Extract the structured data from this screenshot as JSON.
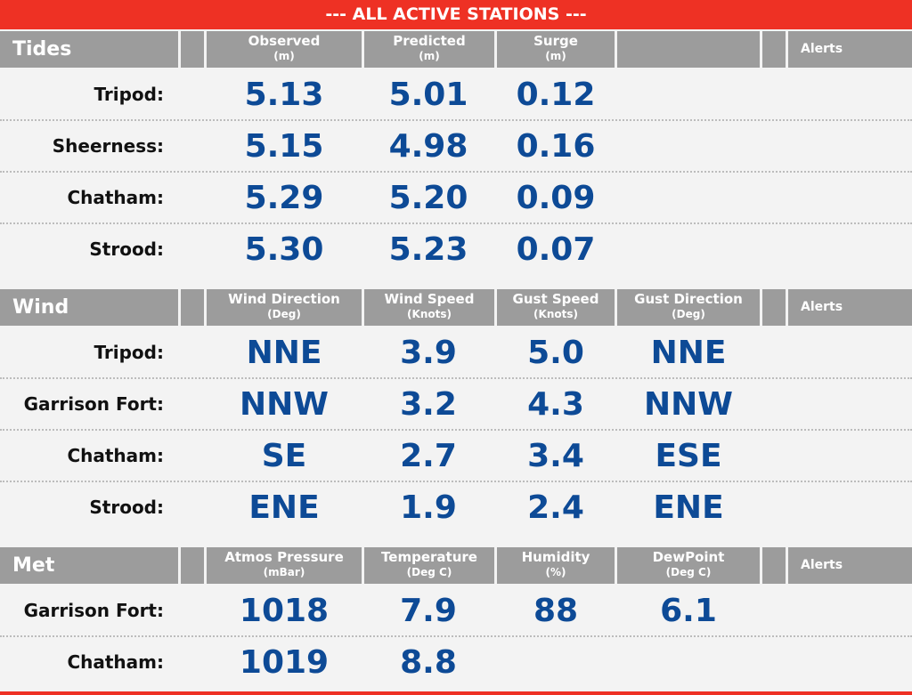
{
  "banner": "--- ALL ACTIVE STATIONS ---",
  "tides": {
    "title": "Tides",
    "columns": [
      {
        "label": "Observed",
        "unit": "(m)"
      },
      {
        "label": "Predicted",
        "unit": "(m)"
      },
      {
        "label": "Surge",
        "unit": "(m)"
      },
      {
        "label": "",
        "unit": ""
      }
    ],
    "alerts": "Alerts",
    "rows": [
      {
        "station": "Tripod:",
        "values": [
          "5.13",
          "5.01",
          "0.12",
          ""
        ]
      },
      {
        "station": "Sheerness:",
        "values": [
          "5.15",
          "4.98",
          "0.16",
          ""
        ]
      },
      {
        "station": "Chatham:",
        "values": [
          "5.29",
          "5.20",
          "0.09",
          ""
        ]
      },
      {
        "station": "Strood:",
        "values": [
          "5.30",
          "5.23",
          "0.07",
          ""
        ]
      }
    ]
  },
  "wind": {
    "title": "Wind",
    "columns": [
      {
        "label": "Wind Direction",
        "unit": "(Deg)"
      },
      {
        "label": "Wind Speed",
        "unit": "(Knots)"
      },
      {
        "label": "Gust Speed",
        "unit": "(Knots)"
      },
      {
        "label": "Gust Direction",
        "unit": "(Deg)"
      }
    ],
    "alerts": "Alerts",
    "rows": [
      {
        "station": "Tripod:",
        "values": [
          "NNE",
          "3.9",
          "5.0",
          "NNE"
        ]
      },
      {
        "station": "Garrison Fort:",
        "values": [
          "NNW",
          "3.2",
          "4.3",
          "NNW"
        ]
      },
      {
        "station": "Chatham:",
        "values": [
          "SE",
          "2.7",
          "3.4",
          "ESE"
        ]
      },
      {
        "station": "Strood:",
        "values": [
          "ENE",
          "1.9",
          "2.4",
          "ENE"
        ]
      }
    ]
  },
  "met": {
    "title": "Met",
    "columns": [
      {
        "label": "Atmos Pressure",
        "unit": "(mBar)"
      },
      {
        "label": "Temperature",
        "unit": "(Deg C)"
      },
      {
        "label": "Humidity",
        "unit": "(%)"
      },
      {
        "label": "DewPoint",
        "unit": "(Deg C)"
      }
    ],
    "alerts": "Alerts",
    "rows": [
      {
        "station": "Garrison Fort:",
        "values": [
          "1018",
          "7.9",
          "88",
          "6.1"
        ]
      },
      {
        "station": "Chatham:",
        "values": [
          "1019",
          "8.8",
          "",
          ""
        ]
      }
    ]
  },
  "colors": {
    "accent": "#ee3124",
    "header_gray": "#9c9c9c",
    "value_blue": "#0d4a96",
    "background": "#f3f3f3"
  }
}
